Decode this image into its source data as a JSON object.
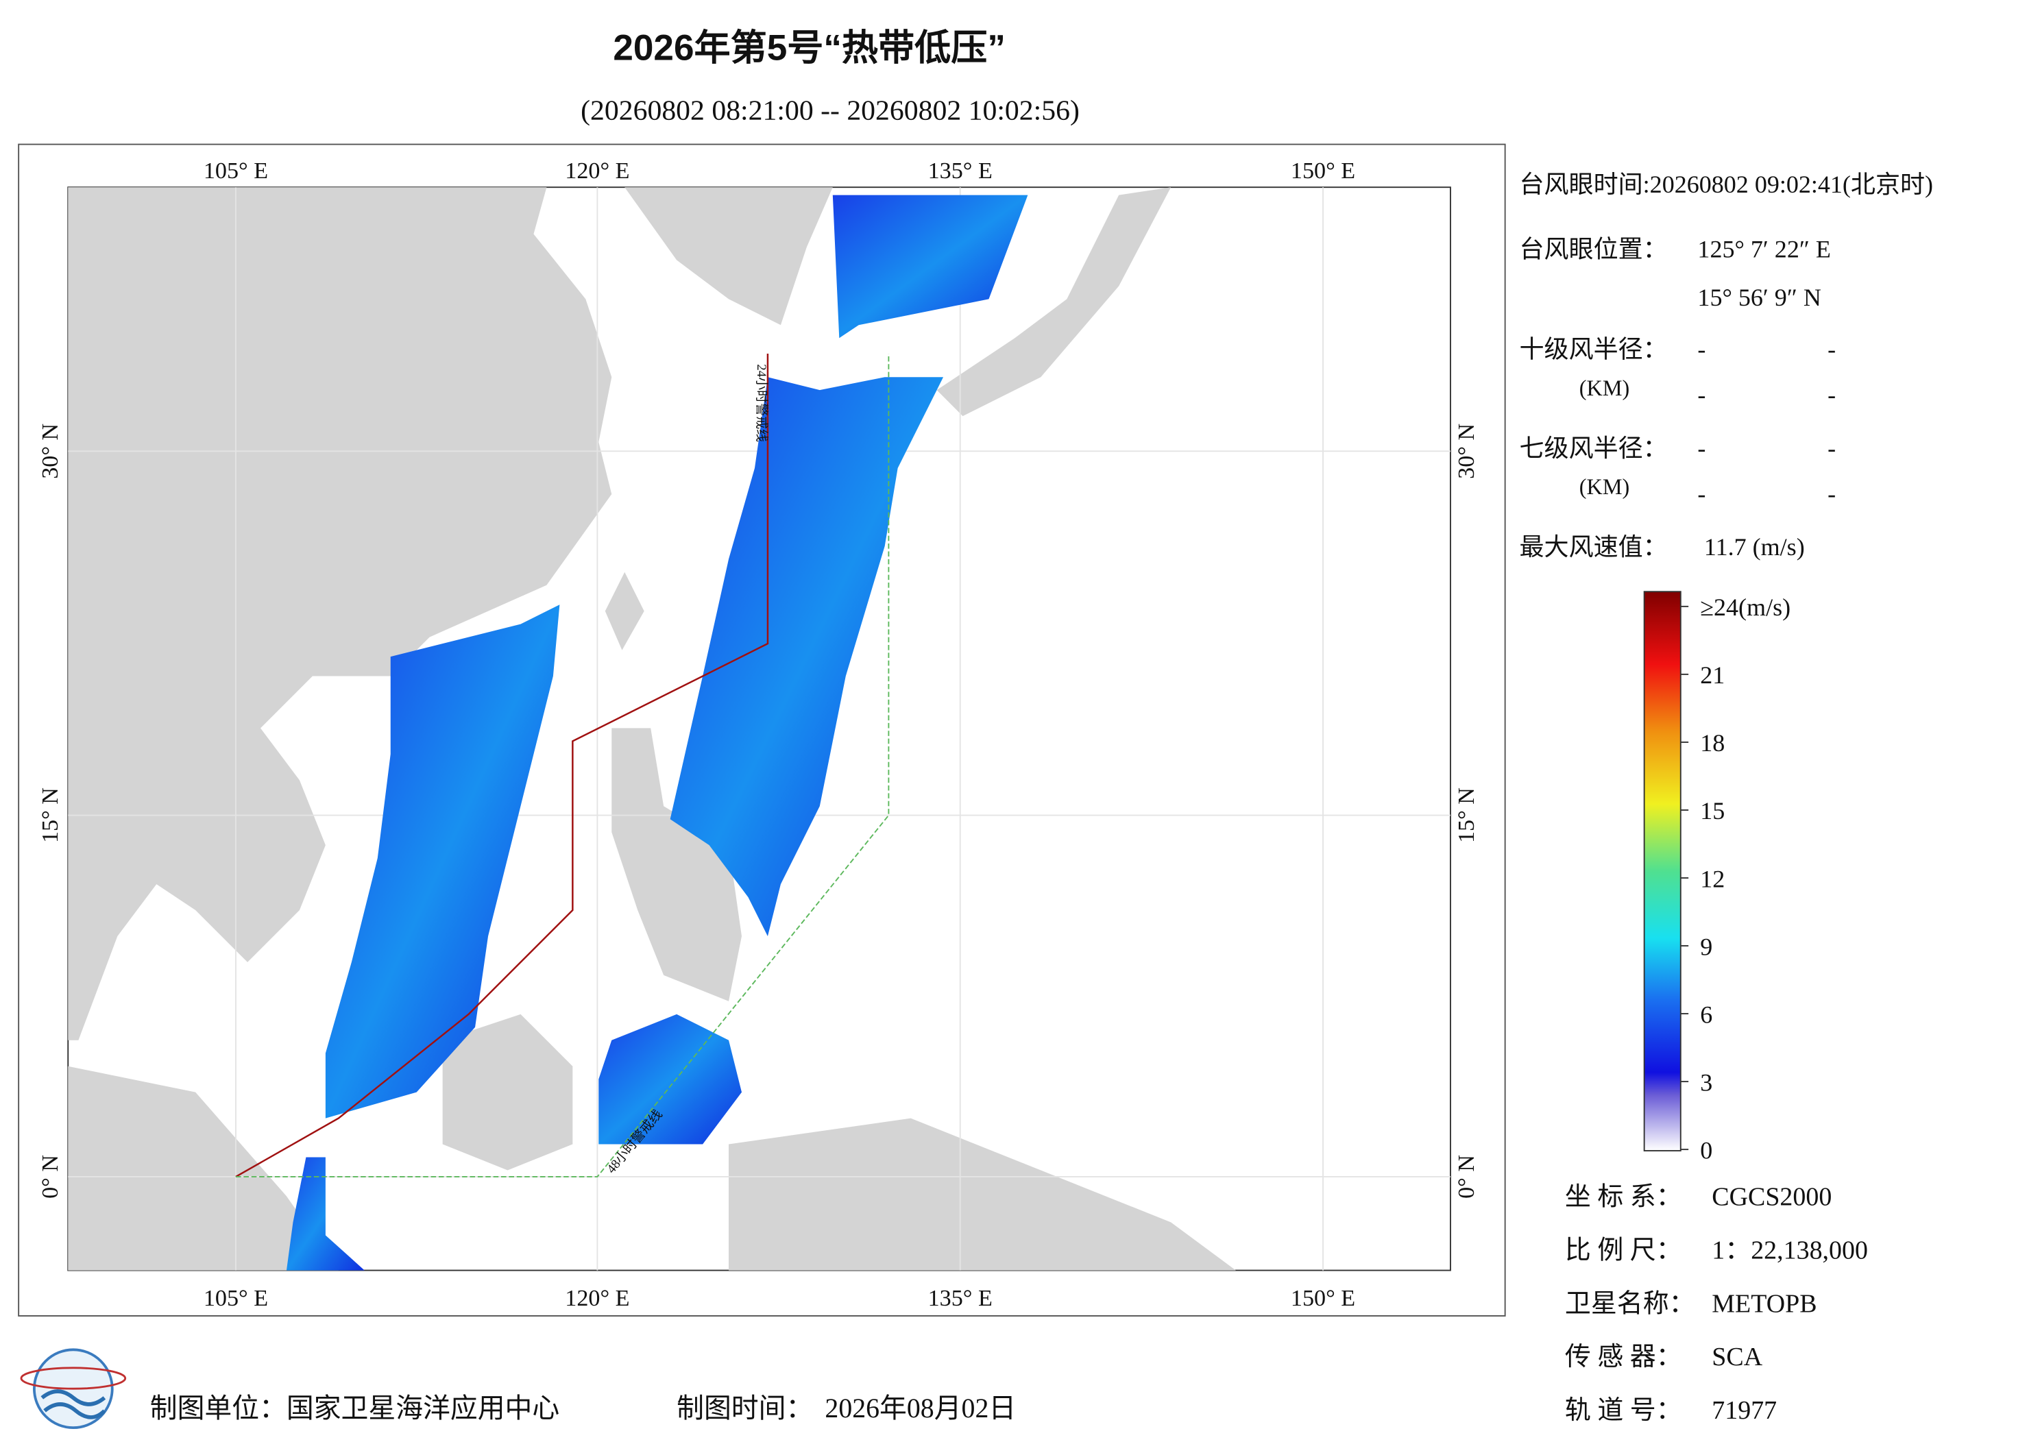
{
  "header": {
    "title": "2026年第5号“热带低压”",
    "subtitle": "(20260802 08:21:00 -- 20260802 10:02:56)"
  },
  "map": {
    "lon_labels": [
      "105° E",
      "120° E",
      "135° E",
      "150° E"
    ],
    "lat_labels": [
      "30° N",
      "15° N",
      "0° N"
    ],
    "lines": [
      "24小时警戒线",
      "48小时警戒线"
    ]
  },
  "info": {
    "eye_time": "台风眼时间:20260802 09:02:41(北京时)",
    "eye_pos_label": "台风眼位置：",
    "eye_lon": "125° 7′ 22″ E",
    "eye_lat": "15° 56′ 9″ N",
    "r10_label": "十级风半径：",
    "r7_label": "七级风半径：",
    "km": "(KM)",
    "dash": "-",
    "vmax_label": "最大风速值：",
    "vmax": "11.7 (m/s)"
  },
  "colorbar": {
    "ticks": [
      0,
      3,
      6,
      9,
      12,
      15,
      18,
      21,
      {
        "value": 24,
        "label": "≥24(m/s)"
      }
    ]
  },
  "meta": {
    "rows": [
      [
        "坐 标 系：",
        "CGCS2000"
      ],
      [
        "比 例 尺：",
        "1：22,138,000"
      ],
      [
        "卫星名称：",
        "METOPB"
      ],
      [
        "传 感 器：",
        "SCA"
      ],
      [
        "轨 道 号：",
        "71977"
      ]
    ]
  },
  "footer": {
    "unit": "制图单位：国家卫星海洋应用中心",
    "time_label": "制图时间：",
    "time": "2026年08月02日"
  }
}
